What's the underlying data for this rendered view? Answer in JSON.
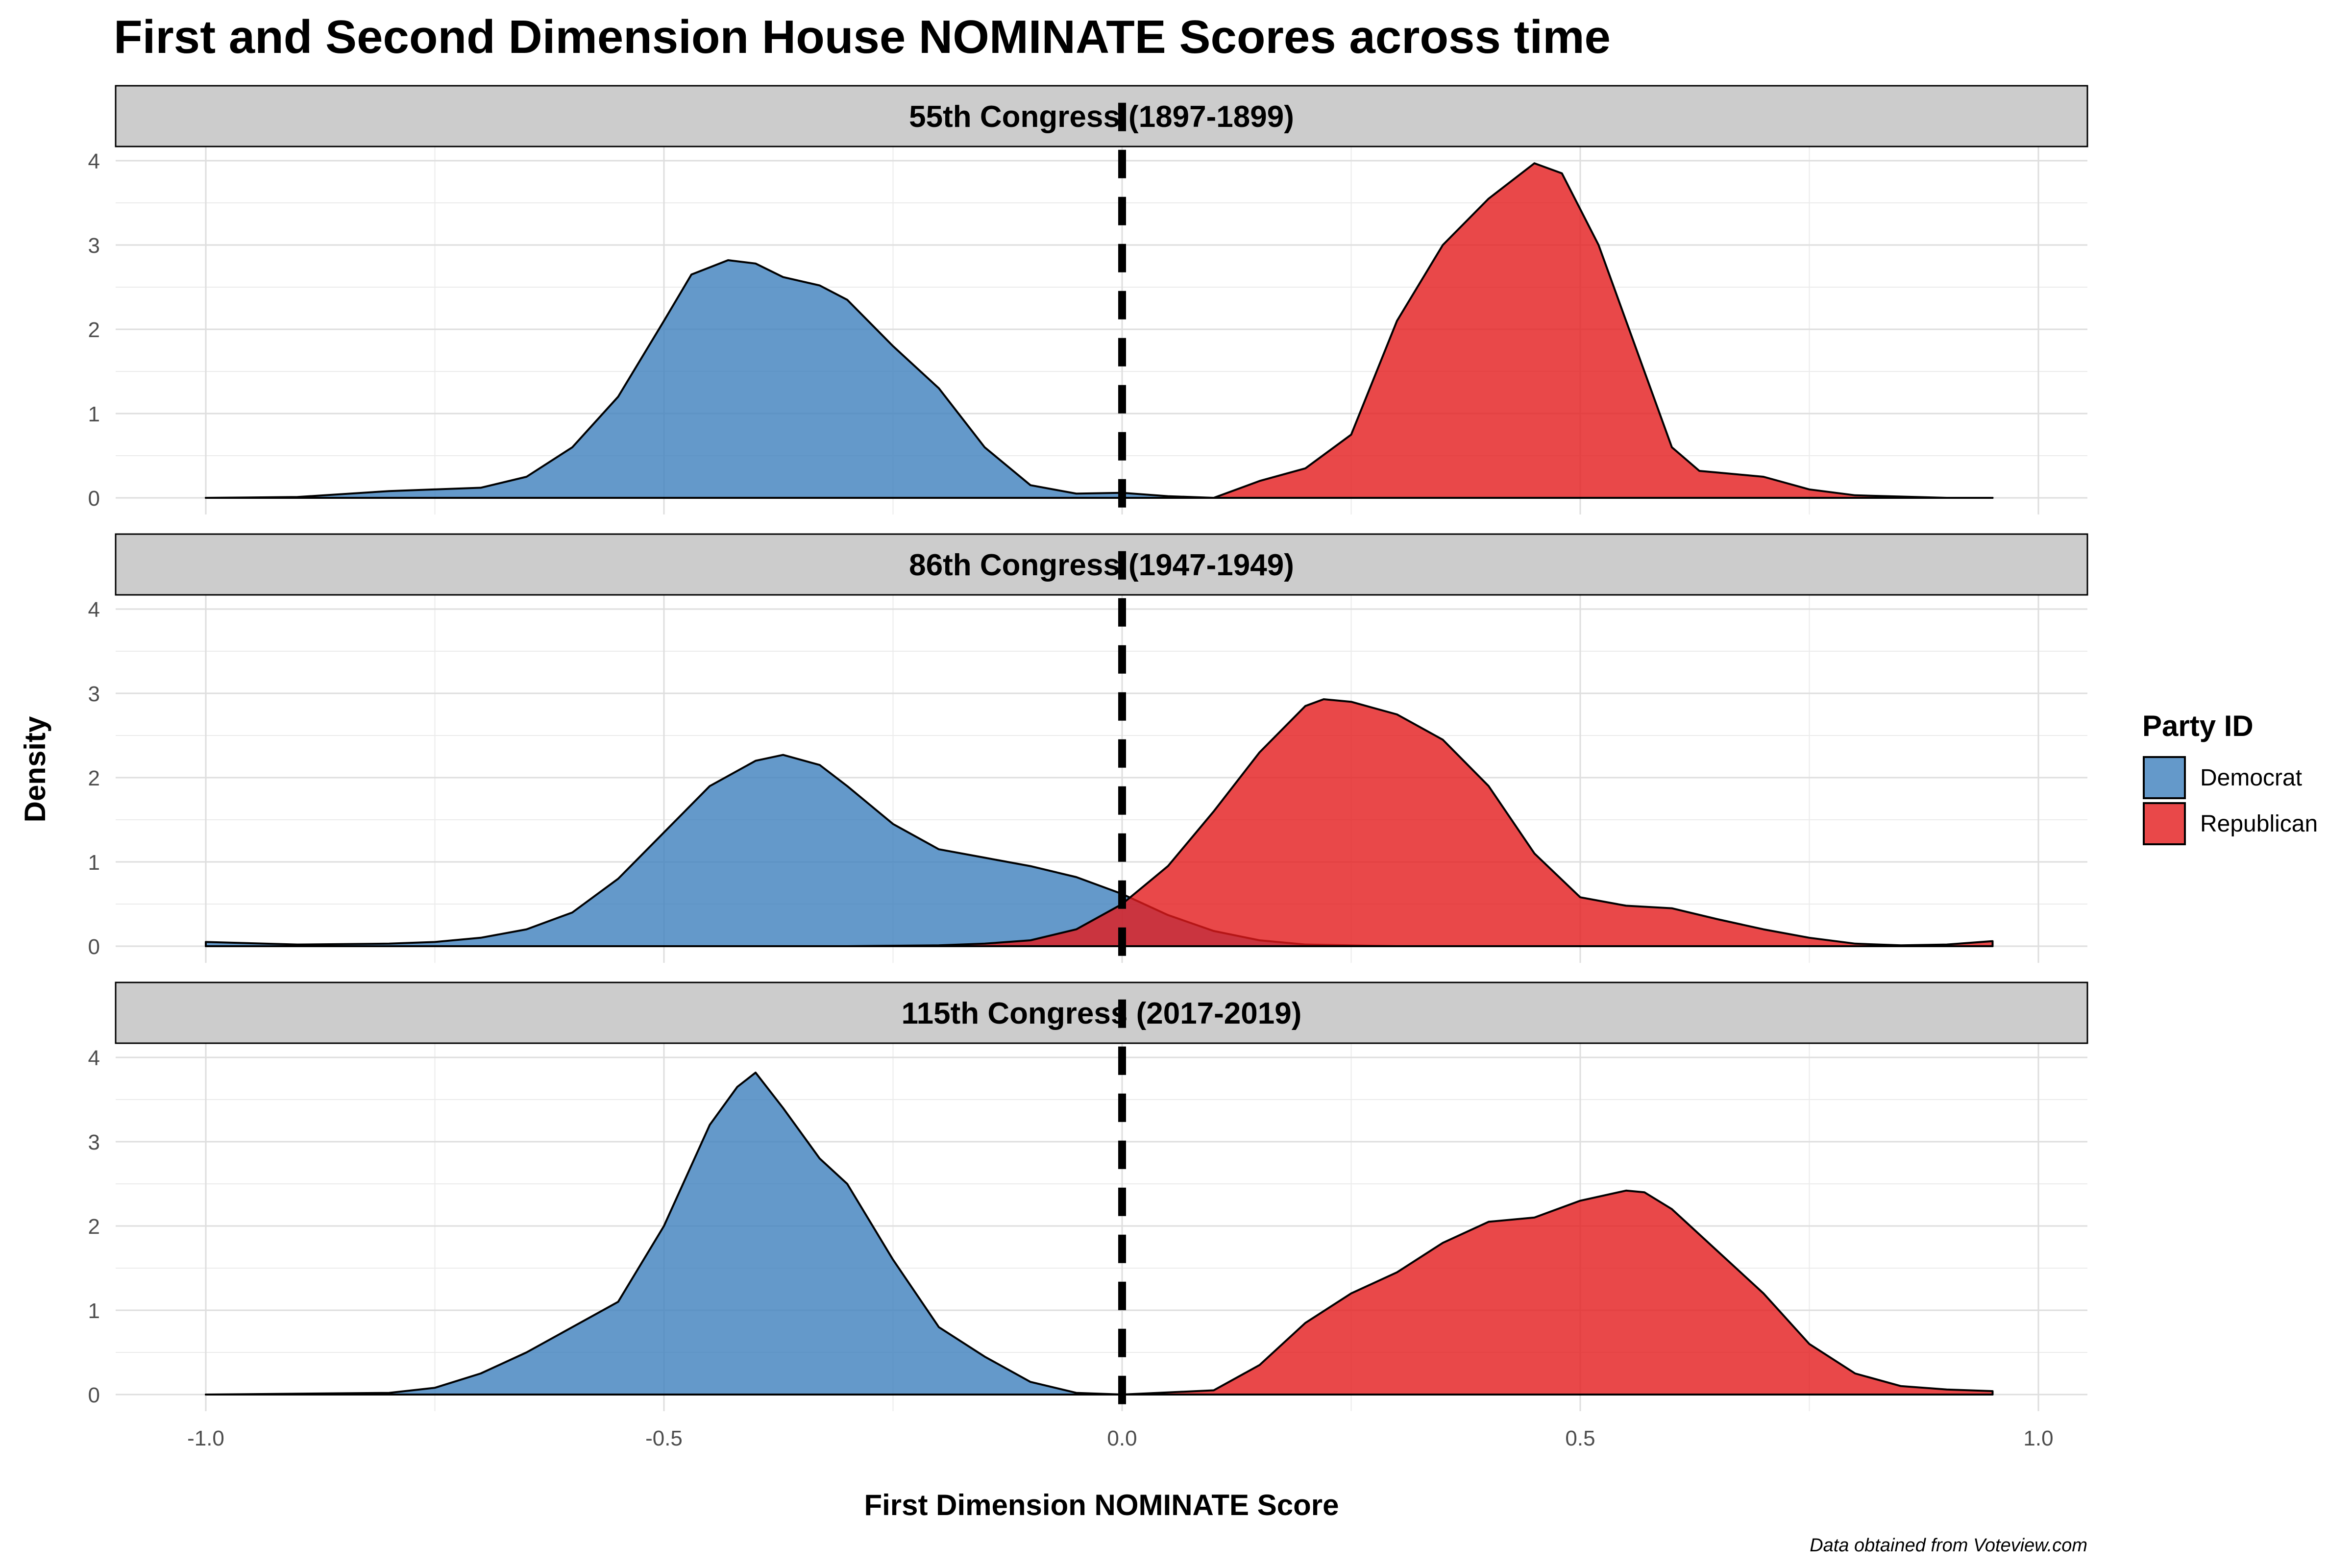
{
  "chart_data": {
    "type": "area",
    "title": "First and Second Dimension House NOMINATE Scores across time",
    "xlabel": "First Dimension NOMINATE Score",
    "ylabel": "Density",
    "caption": "Data obtained from Voteview.com",
    "xlim": [
      -1.0,
      1.0
    ],
    "ylim": [
      0,
      4
    ],
    "x_ticks": [
      -1.0,
      -0.5,
      0.0,
      0.5,
      1.0
    ],
    "x_tick_labels": [
      "-1.0",
      "-0.5",
      "0.0",
      "0.5",
      "1.0"
    ],
    "y_ticks": [
      0,
      1,
      2,
      3,
      4
    ],
    "y_tick_labels": [
      "0",
      "1",
      "2",
      "3",
      "4"
    ],
    "reference_line": {
      "x": 0.0,
      "style": "dashed"
    },
    "grid": true,
    "legend": {
      "title": "Party ID",
      "position": "right",
      "entries": [
        {
          "label": "Democrat",
          "color": "#3D7FBD"
        },
        {
          "label": "Republican",
          "color": "#E41A1C"
        }
      ]
    },
    "panels": [
      {
        "label": "55th Congress (1897-1899)",
        "series": [
          {
            "name": "Democrat",
            "color": "#3D7FBD",
            "x": [
              -1.0,
              -0.9,
              -0.8,
              -0.75,
              -0.7,
              -0.65,
              -0.6,
              -0.55,
              -0.5,
              -0.47,
              -0.43,
              -0.4,
              -0.37,
              -0.33,
              -0.3,
              -0.25,
              -0.2,
              -0.15,
              -0.1,
              -0.05,
              0.0,
              0.05,
              0.1,
              0.15,
              0.2,
              0.3,
              0.5,
              0.7,
              0.95
            ],
            "y": [
              0.0,
              0.01,
              0.08,
              0.1,
              0.12,
              0.25,
              0.6,
              1.2,
              2.1,
              2.65,
              2.82,
              2.78,
              2.62,
              2.52,
              2.35,
              1.8,
              1.3,
              0.6,
              0.15,
              0.05,
              0.06,
              0.02,
              0.0,
              0.0,
              0.0,
              0.0,
              0.0,
              0.0,
              0.0
            ]
          },
          {
            "name": "Republican",
            "color": "#E41A1C",
            "x": [
              -1.0,
              -0.5,
              0.0,
              0.05,
              0.1,
              0.15,
              0.2,
              0.25,
              0.3,
              0.35,
              0.4,
              0.45,
              0.48,
              0.52,
              0.55,
              0.6,
              0.63,
              0.65,
              0.7,
              0.75,
              0.8,
              0.9,
              0.95
            ],
            "y": [
              0.0,
              0.0,
              0.0,
              0.0,
              0.0,
              0.2,
              0.35,
              0.75,
              2.1,
              3.0,
              3.55,
              3.97,
              3.85,
              3.0,
              2.1,
              0.6,
              0.32,
              0.3,
              0.25,
              0.1,
              0.03,
              0.0,
              0.0
            ]
          }
        ]
      },
      {
        "label": "86th Congress (1947-1949)",
        "series": [
          {
            "name": "Democrat",
            "color": "#3D7FBD",
            "x": [
              -1.0,
              -0.9,
              -0.8,
              -0.75,
              -0.7,
              -0.65,
              -0.6,
              -0.55,
              -0.5,
              -0.45,
              -0.4,
              -0.37,
              -0.33,
              -0.3,
              -0.25,
              -0.2,
              -0.15,
              -0.1,
              -0.05,
              0.0,
              0.05,
              0.1,
              0.15,
              0.2,
              0.3,
              0.5,
              0.7,
              0.95
            ],
            "y": [
              0.05,
              0.02,
              0.03,
              0.05,
              0.1,
              0.2,
              0.4,
              0.8,
              1.35,
              1.9,
              2.2,
              2.27,
              2.15,
              1.9,
              1.45,
              1.15,
              1.05,
              0.95,
              0.82,
              0.62,
              0.37,
              0.18,
              0.07,
              0.02,
              0.0,
              0.0,
              0.0,
              0.0
            ]
          },
          {
            "name": "Republican",
            "color": "#E41A1C",
            "x": [
              -1.0,
              -0.3,
              -0.2,
              -0.15,
              -0.1,
              -0.05,
              0.0,
              0.05,
              0.1,
              0.15,
              0.2,
              0.22,
              0.25,
              0.3,
              0.35,
              0.4,
              0.45,
              0.5,
              0.55,
              0.6,
              0.65,
              0.7,
              0.75,
              0.8,
              0.85,
              0.9,
              0.95
            ],
            "y": [
              0.0,
              0.0,
              0.01,
              0.03,
              0.07,
              0.2,
              0.5,
              0.95,
              1.6,
              2.3,
              2.85,
              2.93,
              2.9,
              2.75,
              2.45,
              1.9,
              1.1,
              0.58,
              0.48,
              0.45,
              0.32,
              0.2,
              0.1,
              0.03,
              0.01,
              0.02,
              0.06
            ]
          }
        ]
      },
      {
        "label": "115th Congress (2017-2019)",
        "series": [
          {
            "name": "Democrat",
            "color": "#3D7FBD",
            "x": [
              -1.0,
              -0.8,
              -0.75,
              -0.7,
              -0.65,
              -0.6,
              -0.55,
              -0.5,
              -0.45,
              -0.42,
              -0.4,
              -0.37,
              -0.33,
              -0.3,
              -0.25,
              -0.2,
              -0.15,
              -0.1,
              -0.05,
              0.0,
              0.05,
              0.95
            ],
            "y": [
              0.0,
              0.02,
              0.08,
              0.25,
              0.5,
              0.8,
              1.1,
              2.0,
              3.2,
              3.65,
              3.82,
              3.4,
              2.8,
              2.5,
              1.6,
              0.8,
              0.45,
              0.15,
              0.02,
              0.0,
              0.0,
              0.0
            ]
          },
          {
            "name": "Republican",
            "color": "#E41A1C",
            "x": [
              -1.0,
              0.0,
              0.1,
              0.15,
              0.2,
              0.25,
              0.3,
              0.35,
              0.4,
              0.45,
              0.5,
              0.55,
              0.57,
              0.6,
              0.65,
              0.7,
              0.75,
              0.8,
              0.85,
              0.9,
              0.95
            ],
            "y": [
              0.0,
              0.0,
              0.05,
              0.35,
              0.85,
              1.2,
              1.45,
              1.8,
              2.05,
              2.1,
              2.3,
              2.42,
              2.4,
              2.2,
              1.7,
              1.2,
              0.6,
              0.25,
              0.1,
              0.06,
              0.04
            ]
          }
        ]
      }
    ]
  }
}
